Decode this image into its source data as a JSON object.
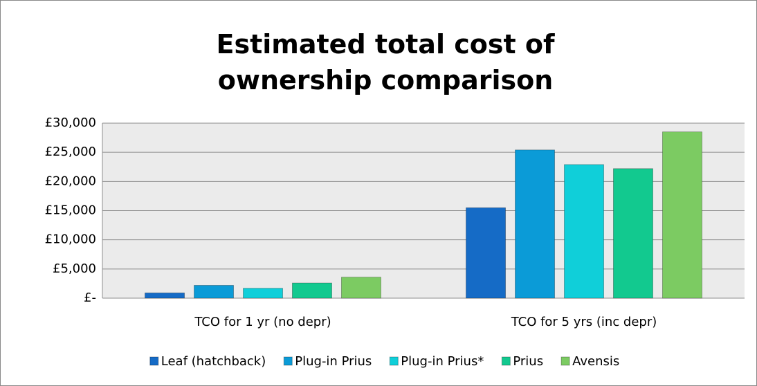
{
  "chart_data": {
    "type": "bar",
    "title": "Estimated total cost of ownership comparison",
    "categories": [
      "TCO for 1 yr (no depr)",
      "TCO for 5 yrs (inc depr)"
    ],
    "series": [
      {
        "name": "Leaf (hatchback)",
        "color": "#156bc6",
        "values": [
          900,
          15500
        ]
      },
      {
        "name": "Plug-in Prius",
        "color": "#0b9bd7",
        "values": [
          2200,
          25400
        ]
      },
      {
        "name": "Plug-in Prius*",
        "color": "#10cfd9",
        "values": [
          1700,
          22900
        ]
      },
      {
        "name": "Prius",
        "color": "#12c98f",
        "values": [
          2600,
          22200
        ]
      },
      {
        "name": "Avensis",
        "color": "#7ccb62",
        "values": [
          3600,
          28500
        ]
      }
    ],
    "ylim": [
      0,
      30000
    ],
    "yticks": [
      {
        "value": 0,
        "label": "£-"
      },
      {
        "value": 5000,
        "label": "£5,000"
      },
      {
        "value": 10000,
        "label": "£10,000"
      },
      {
        "value": 15000,
        "label": "£15,000"
      },
      {
        "value": 20000,
        "label": "£20,000"
      },
      {
        "value": 25000,
        "label": "£25,000"
      },
      {
        "value": 30000,
        "label": "£30,000"
      }
    ],
    "grid": true,
    "legend": "bottom"
  }
}
